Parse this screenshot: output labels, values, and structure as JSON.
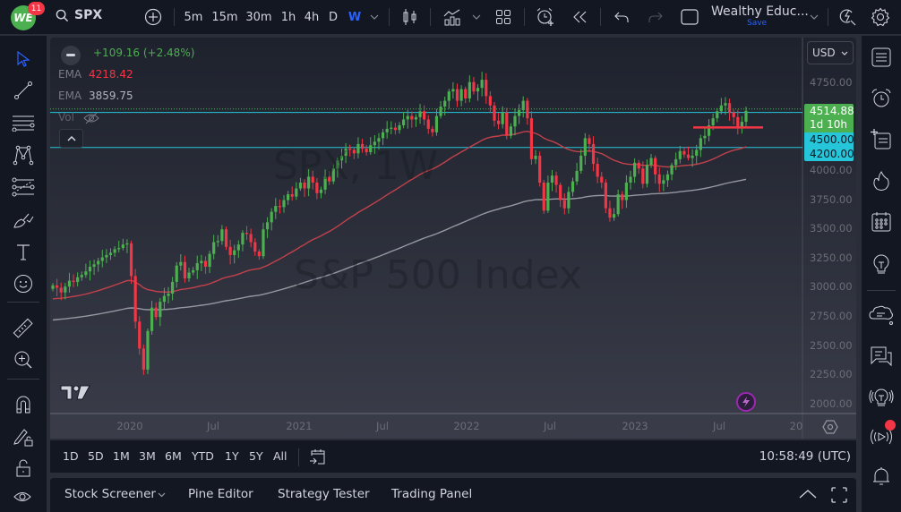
{
  "topbar": {
    "badge_count": "11",
    "logo_text": "WE",
    "symbol": "SPX",
    "intervals": [
      "5m",
      "15m",
      "30m",
      "1h",
      "4h",
      "D",
      "W"
    ],
    "active_interval": "W",
    "layout_name": "Wealthy Educ...",
    "layout_save": "Save"
  },
  "legend": {
    "change": "+109.16 (+2.48%)",
    "ema1_label": "EMA",
    "ema1_value": "4218.42",
    "ema2_label": "EMA",
    "ema2_value": "3859.75",
    "vol_label": "Vol"
  },
  "watermark": {
    "symbol_line": "SPX, 1W",
    "name_line": "S&P 500 Index"
  },
  "price_axis": {
    "currency": "USD",
    "ticks": [
      "4750.00",
      "4500.00",
      "4250.00",
      "4000.00",
      "3750.00",
      "3500.00",
      "3250.00",
      "3000.00",
      "2750.00",
      "2500.00",
      "2250.00",
      "2000.00"
    ],
    "current_price": "4514.88",
    "countdown": "1d 10h",
    "hline1": "4500.00",
    "hline2": "4200.00"
  },
  "time_axis": {
    "labels": [
      "2020",
      "Jul",
      "2021",
      "Jul",
      "2022",
      "Jul",
      "2023",
      "Jul",
      "20"
    ]
  },
  "colors": {
    "up": "#4caf50",
    "down": "#f23645",
    "ema_fast": "#c2414b",
    "ema_slow": "#9598a1",
    "hline": "#26c6da",
    "accent": "#2962ff"
  },
  "range_bar": {
    "ranges": [
      "1D",
      "5D",
      "1M",
      "3M",
      "6M",
      "YTD",
      "1Y",
      "5Y",
      "All"
    ],
    "clock": "10:58:49 (UTC)"
  },
  "bottom_tabs": [
    "Stock Screener",
    "Pine Editor",
    "Strategy Tester",
    "Trading Panel"
  ],
  "chart_data": {
    "type": "candlestick",
    "title": "SPX, 1W — S&P 500 Index",
    "ylim": [
      2000,
      4850
    ],
    "x_labels": [
      "2020",
      "Jul",
      "2021",
      "Jul",
      "2022",
      "Jul",
      "2023",
      "Jul"
    ],
    "weekly_close_path": [
      3020,
      3000,
      2960,
      3010,
      3060,
      3050,
      3090,
      3110,
      3140,
      3180,
      3200,
      3230,
      3260,
      3280,
      3300,
      3330,
      3340,
      3370,
      3380,
      3100,
      2710,
      2480,
      2300,
      2630,
      2830,
      2750,
      2880,
      2930,
      2950,
      3050,
      3190,
      3220,
      3080,
      3130,
      3150,
      3210,
      3230,
      3180,
      3290,
      3390,
      3400,
      3500,
      3350,
      3280,
      3320,
      3370,
      3470,
      3460,
      3390,
      3310,
      3270,
      3500,
      3560,
      3650,
      3700,
      3690,
      3750,
      3800,
      3780,
      3850,
      3900,
      3850,
      3950,
      3900,
      3810,
      3840,
      3950,
      3910,
      4020,
      4090,
      4130,
      4190,
      4180,
      4150,
      4230,
      4190,
      4160,
      4220,
      4250,
      4280,
      4330,
      4360,
      4370,
      4350,
      4390,
      4440,
      4470,
      4440,
      4460,
      4510,
      4440,
      4360,
      4330,
      4470,
      4550,
      4600,
      4680,
      4700,
      4600,
      4700,
      4620,
      4760,
      4680,
      4710,
      4780,
      4640,
      4560,
      4430,
      4400,
      4500,
      4300,
      4380,
      4470,
      4520,
      4600,
      4450,
      4100,
      4130,
      3900,
      3660,
      3900,
      3960,
      3880,
      3750,
      3680,
      3820,
      3910,
      4000,
      4130,
      4280,
      4230,
      4060,
      3950,
      3900,
      3680,
      3600,
      3630,
      3800,
      3750,
      3900,
      3950,
      4070,
      4020,
      3890,
      4050,
      4110,
      3970,
      3890,
      3920,
      3970,
      4050,
      4100,
      4170,
      4140,
      4110,
      4130,
      4180,
      4280,
      4300,
      4390,
      4450,
      4510,
      4560,
      4580,
      4500,
      4460,
      4370,
      4420,
      4514
    ],
    "ema_fast_end": 4218.42,
    "ema_slow_end": 3859.75,
    "horizontal_lines": [
      4500,
      4200
    ],
    "support_marker": 4372,
    "last_price": 4514.88,
    "change": "+109.16 (+2.48%)"
  }
}
